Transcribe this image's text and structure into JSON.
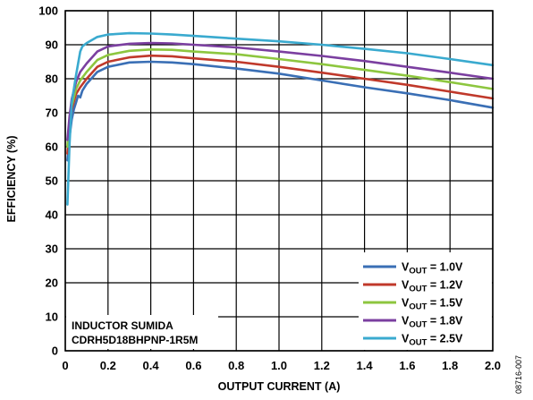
{
  "chart_data": {
    "type": "line",
    "title": "",
    "xlabel": "OUTPUT CURRENT (A)",
    "ylabel": "EFFICIENCY (%)",
    "xlim": [
      0,
      2.0
    ],
    "ylim": [
      0,
      100
    ],
    "xticks": [
      "0",
      "0.2",
      "0.4",
      "0.6",
      "0.8",
      "1.0",
      "1.2",
      "1.4",
      "1.6",
      "1.8",
      "2.0"
    ],
    "yticks": [
      "0",
      "10",
      "20",
      "30",
      "40",
      "50",
      "60",
      "70",
      "80",
      "90",
      "100"
    ],
    "grid": true,
    "legend_position": "bottom-right",
    "series": [
      {
        "name_main": "V",
        "name_sub": "OUT",
        "name_tail": " = 1.0V",
        "color": "#3a6fb5",
        "points": [
          [
            0.01,
            56
          ],
          [
            0.02,
            63
          ],
          [
            0.03,
            68
          ],
          [
            0.04,
            71
          ],
          [
            0.05,
            73
          ],
          [
            0.06,
            75
          ],
          [
            0.07,
            74.5
          ],
          [
            0.08,
            76.5
          ],
          [
            0.1,
            78.5
          ],
          [
            0.15,
            82
          ],
          [
            0.2,
            83.5
          ],
          [
            0.3,
            84.8
          ],
          [
            0.4,
            85
          ],
          [
            0.5,
            84.8
          ],
          [
            0.6,
            84.3
          ],
          [
            0.8,
            83
          ],
          [
            1.0,
            81.5
          ],
          [
            1.2,
            79.5
          ],
          [
            1.4,
            77.5
          ],
          [
            1.6,
            75.7
          ],
          [
            1.8,
            73.7
          ],
          [
            2.0,
            71.5
          ]
        ]
      },
      {
        "name_main": "V",
        "name_sub": "OUT",
        "name_tail": " = 1.2V",
        "color": "#c0392b",
        "points": [
          [
            0.01,
            58
          ],
          [
            0.02,
            66
          ],
          [
            0.03,
            71
          ],
          [
            0.05,
            75.5
          ],
          [
            0.07,
            77.5
          ],
          [
            0.1,
            80
          ],
          [
            0.15,
            83.5
          ],
          [
            0.2,
            85
          ],
          [
            0.3,
            86.3
          ],
          [
            0.4,
            86.8
          ],
          [
            0.5,
            86.6
          ],
          [
            0.6,
            86
          ],
          [
            0.8,
            85
          ],
          [
            1.0,
            83.5
          ],
          [
            1.2,
            81.8
          ],
          [
            1.4,
            80
          ],
          [
            1.6,
            78.2
          ],
          [
            1.8,
            76.2
          ],
          [
            2.0,
            74.2
          ]
        ]
      },
      {
        "name_main": "V",
        "name_sub": "OUT",
        "name_tail": " = 1.5V",
        "color": "#8dc63f",
        "points": [
          [
            0.01,
            60
          ],
          [
            0.02,
            68
          ],
          [
            0.03,
            72
          ],
          [
            0.05,
            77
          ],
          [
            0.07,
            79.5
          ],
          [
            0.1,
            82
          ],
          [
            0.15,
            85.5
          ],
          [
            0.2,
            87
          ],
          [
            0.3,
            88.2
          ],
          [
            0.4,
            88.6
          ],
          [
            0.5,
            88.5
          ],
          [
            0.6,
            88
          ],
          [
            0.8,
            87.2
          ],
          [
            1.0,
            85.8
          ],
          [
            1.2,
            84.3
          ],
          [
            1.4,
            82.6
          ],
          [
            1.6,
            80.9
          ],
          [
            1.8,
            79
          ],
          [
            2.0,
            77
          ]
        ]
      },
      {
        "name_main": "V",
        "name_sub": "OUT",
        "name_tail": " = 1.8V",
        "color": "#7b3fa0",
        "points": [
          [
            0.01,
            62
          ],
          [
            0.02,
            69
          ],
          [
            0.03,
            74
          ],
          [
            0.05,
            79
          ],
          [
            0.07,
            82
          ],
          [
            0.1,
            84.5
          ],
          [
            0.15,
            88
          ],
          [
            0.2,
            89.5
          ],
          [
            0.3,
            90.3
          ],
          [
            0.4,
            90.5
          ],
          [
            0.5,
            90.4
          ],
          [
            0.6,
            90
          ],
          [
            0.8,
            89.2
          ],
          [
            1.0,
            88
          ],
          [
            1.2,
            86.7
          ],
          [
            1.4,
            85.2
          ],
          [
            1.6,
            83.5
          ],
          [
            1.8,
            81.8
          ],
          [
            2.0,
            80
          ]
        ]
      },
      {
        "name_main": "V",
        "name_sub": "OUT",
        "name_tail": " = 2.5V",
        "color": "#3aaacf",
        "points": [
          [
            0.01,
            43
          ],
          [
            0.02,
            61
          ],
          [
            0.03,
            73
          ],
          [
            0.05,
            81
          ],
          [
            0.07,
            88
          ],
          [
            0.08,
            89.5
          ],
          [
            0.1,
            90.5
          ],
          [
            0.15,
            92.3
          ],
          [
            0.2,
            93
          ],
          [
            0.3,
            93.4
          ],
          [
            0.4,
            93.3
          ],
          [
            0.5,
            93
          ],
          [
            0.6,
            92.6
          ],
          [
            0.8,
            91.8
          ],
          [
            1.0,
            91
          ],
          [
            1.2,
            90
          ],
          [
            1.4,
            88.8
          ],
          [
            1.6,
            87.5
          ],
          [
            1.8,
            85.8
          ],
          [
            2.0,
            84
          ]
        ]
      }
    ]
  },
  "annotation": {
    "line1": "INDUCTOR SUMIDA",
    "line2": "CDRH5D18BHPNP-1R5M"
  },
  "figure_id": "08716-007"
}
